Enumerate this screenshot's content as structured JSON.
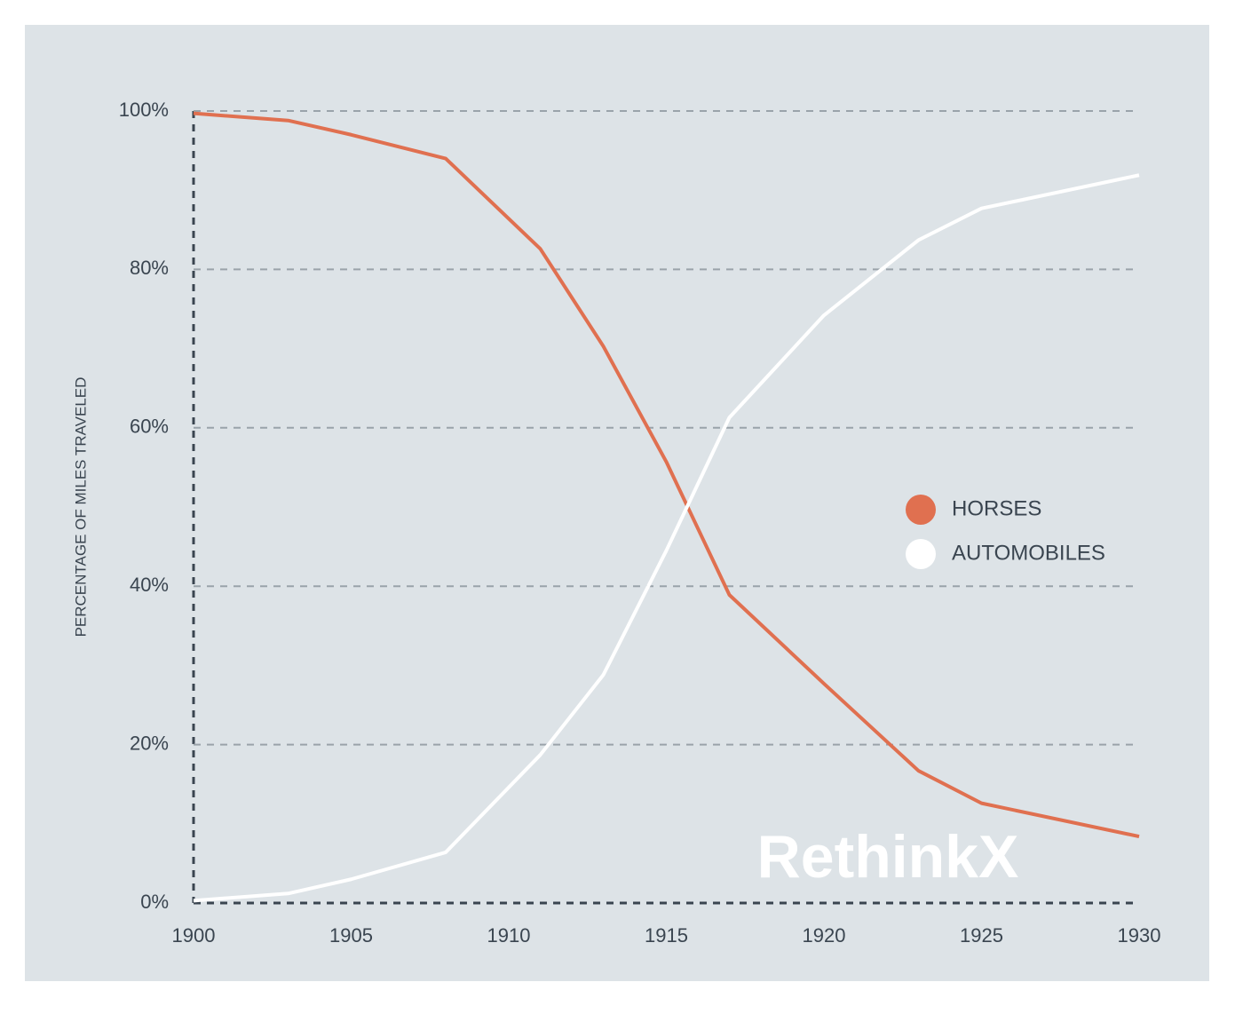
{
  "chart_data": {
    "type": "line",
    "y_label": "PERCENTAGE OF MILES TRAVELED",
    "watermark": "RethinkX",
    "x": [
      1900,
      1903,
      1905,
      1908,
      1911,
      1913,
      1915,
      1917,
      1920,
      1923,
      1925,
      1930
    ],
    "series": [
      {
        "name": "HORSES",
        "color": "#e07050",
        "values": [
          99.7,
          98.8,
          97,
          94,
          82.6,
          70.3,
          55.7,
          38.9,
          27.7,
          16.7,
          12.6,
          8.4
        ]
      },
      {
        "name": "AUTOMOBILES",
        "color": "#ffffff",
        "values": [
          0.3,
          1.2,
          3,
          6.4,
          18.7,
          28.8,
          44.5,
          61.3,
          74.2,
          83.7,
          87.7,
          91.9
        ]
      }
    ],
    "xlim": [
      1900,
      1930
    ],
    "xticks": [
      1900,
      1905,
      1910,
      1915,
      1920,
      1925,
      1930
    ],
    "ylim": [
      0,
      100
    ],
    "yticks": [
      {
        "value": 0,
        "label": "0%"
      },
      {
        "value": 20,
        "label": "20%"
      },
      {
        "value": 40,
        "label": "40%"
      },
      {
        "value": 60,
        "label": "60%"
      },
      {
        "value": 80,
        "label": "80%"
      },
      {
        "value": 100,
        "label": "100%"
      }
    ],
    "grid": true
  }
}
